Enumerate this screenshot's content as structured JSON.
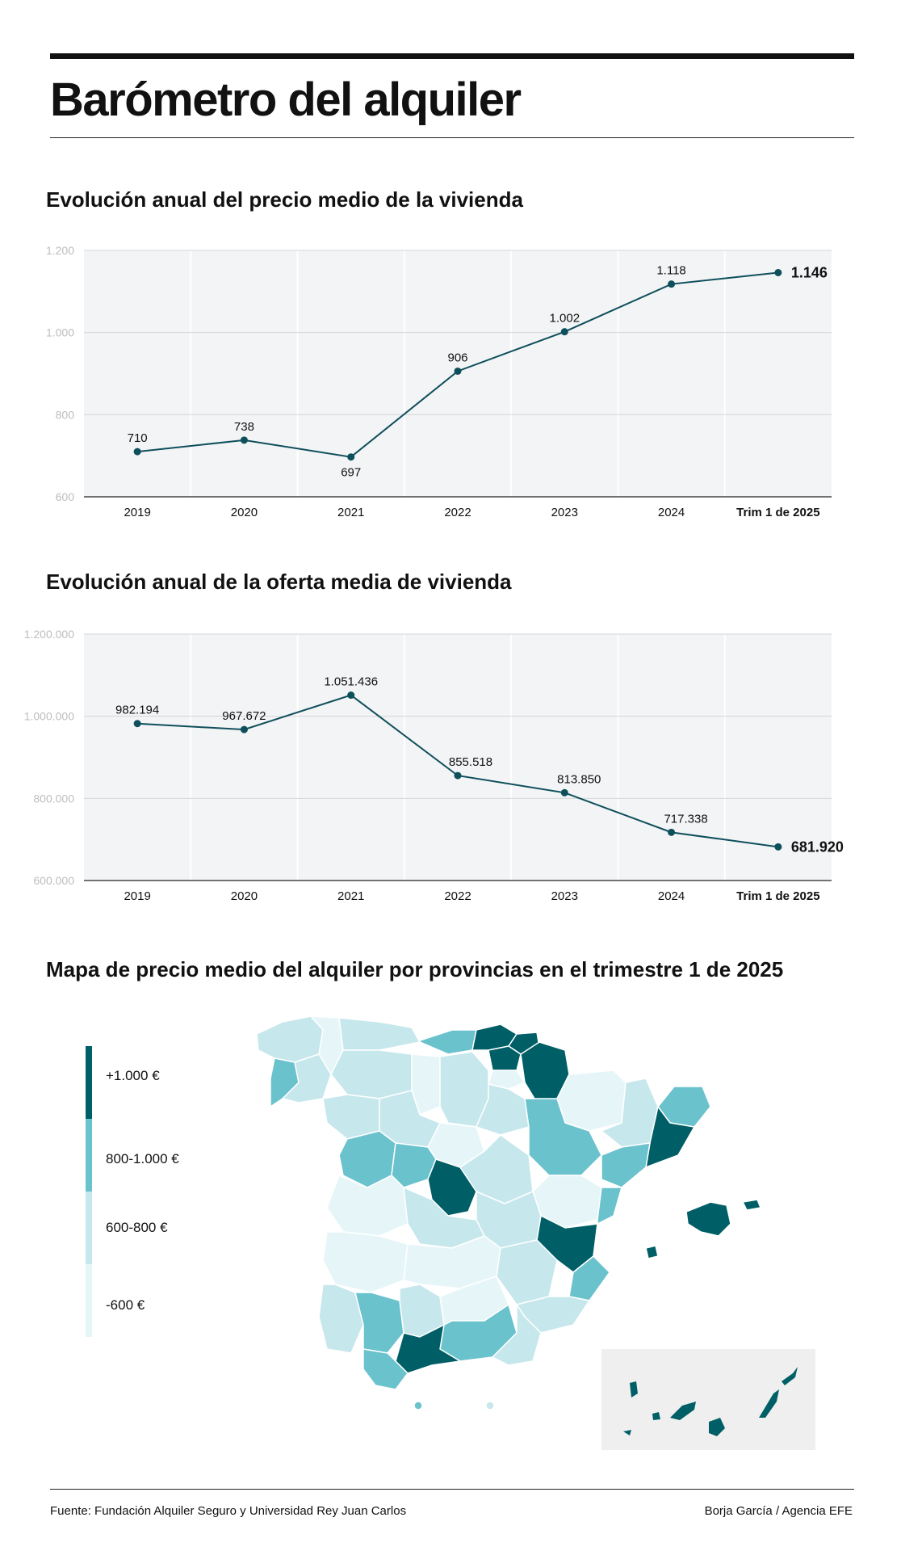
{
  "header": {
    "title": "Barómetro del alquiler"
  },
  "chart_data": [
    {
      "type": "line",
      "title": "Evolución anual del precio medio de la vivienda",
      "categories": [
        "2019",
        "2020",
        "2021",
        "2022",
        "2023",
        "2024",
        "Trim 1 de 2025"
      ],
      "values": [
        710,
        738,
        697,
        906,
        1002,
        1118,
        1146
      ],
      "value_labels": [
        "710",
        "738",
        "697",
        "906",
        "1.002",
        "1.118",
        "1.146"
      ],
      "ylim": [
        600,
        1200
      ],
      "yticks": [
        {
          "value": 600,
          "label": "600"
        },
        {
          "value": 800,
          "label": "800"
        },
        {
          "value": 1000,
          "label": "1.000"
        },
        {
          "value": 1200,
          "label": "1.200"
        }
      ],
      "grid": true,
      "line_color": "#0e4f5c"
    },
    {
      "type": "line",
      "title": "Evolución anual de la oferta media de vivienda",
      "categories": [
        "2019",
        "2020",
        "2021",
        "2022",
        "2023",
        "2024",
        "Trim 1 de 2025"
      ],
      "values": [
        982194,
        967672,
        1051436,
        855518,
        813850,
        717338,
        681920
      ],
      "value_labels": [
        "982.194",
        "967.672",
        "1.051.436",
        "855.518",
        "813.850",
        "717.338",
        "681.920"
      ],
      "ylim": [
        600000,
        1200000
      ],
      "yticks": [
        {
          "value": 600000,
          "label": "600.000"
        },
        {
          "value": 800000,
          "label": "800.000"
        },
        {
          "value": 1000000,
          "label": "1.000.000"
        },
        {
          "value": 1200000,
          "label": "1.200.000"
        }
      ],
      "grid": true,
      "line_color": "#0e4f5c"
    }
  ],
  "map": {
    "title": "Mapa de precio medio del alquiler por provincias en el trimestre 1 de 2025",
    "legend": [
      {
        "label": "+1.000 €",
        "color": "#005f66"
      },
      {
        "label": "800-1.000 €",
        "color": "#6ac2cd"
      },
      {
        "label": "600-800 €",
        "color": "#c6e7ec"
      },
      {
        "label": "-600 €",
        "color": "#e6f6f8"
      }
    ]
  },
  "footer": {
    "source": "Fuente: Fundación Alquiler Seguro y Universidad Rey Juan Carlos",
    "credit": "Borja García / Agencia EFE"
  }
}
